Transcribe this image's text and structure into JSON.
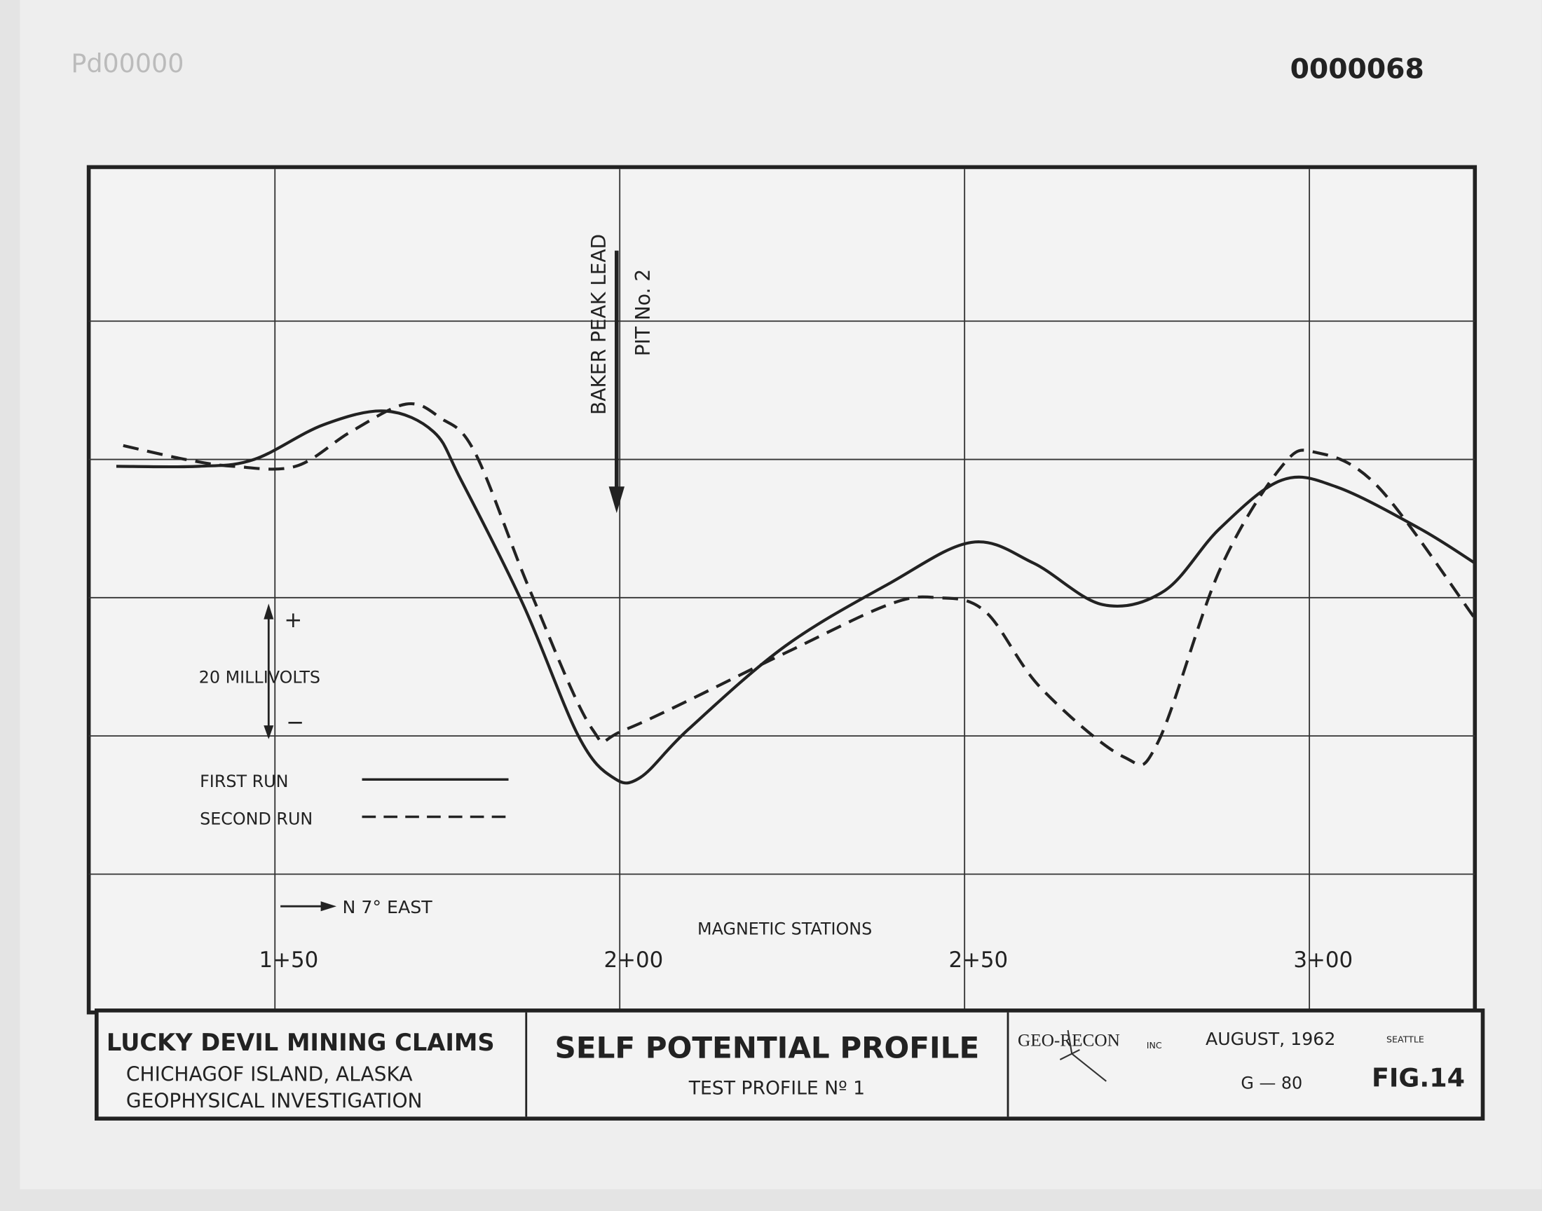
{
  "doc_numbers": {
    "left": "Pd00000",
    "right": "0000068"
  },
  "chart_data": {
    "type": "line",
    "title": "SELF POTENTIAL PROFILE",
    "subtitle": "TEST PROFILE Nº 1",
    "x_label": "MAGNETIC STATIONS",
    "xlim": [
      123,
      324
    ],
    "xticks": [
      {
        "value": 150,
        "label": "1+50"
      },
      {
        "value": 200,
        "label": "2+00"
      },
      {
        "value": 250,
        "label": "2+50"
      },
      {
        "value": 300,
        "label": "3+00"
      }
    ],
    "ylim": [
      -60,
      62
    ],
    "yticks": [
      -40,
      -20,
      0,
      20,
      40
    ],
    "grid": true,
    "series": [
      {
        "name": "FIRST RUN",
        "style": "solid",
        "color": "#222222",
        "x": [
          127,
          139,
          147,
          157,
          166,
          173,
          177,
          186,
          194,
          199,
          203,
          210,
          224,
          239,
          251,
          260,
          270,
          279,
          287,
          296,
          304,
          316,
          324
        ],
        "values": [
          19,
          19,
          20,
          25,
          27,
          24,
          17,
          -1,
          -20,
          -26,
          -26,
          -19,
          -7,
          2,
          8,
          5,
          -1,
          1,
          10,
          17,
          16,
          10,
          5
        ]
      },
      {
        "name": "SECOND RUN",
        "style": "dashed",
        "color": "#222222",
        "x": [
          128,
          137,
          144,
          153,
          161,
          169,
          174,
          179,
          187,
          196,
          201,
          224,
          239,
          246,
          253,
          261,
          273,
          278,
          287,
          296,
          301,
          310,
          324
        ],
        "values": [
          22,
          20,
          19,
          19,
          24,
          28,
          26,
          21,
          1,
          -19,
          -19,
          -8,
          -1,
          0,
          -2,
          -13,
          -23,
          -21,
          4,
          19,
          21,
          16,
          -3
        ]
      }
    ],
    "annotations": {
      "marker": "BAKER PEAK LEAD",
      "marker_sub": "PIT No. 2",
      "scale": "20 MILLIVOLTS",
      "plus": "+",
      "minus": "−",
      "direction": "N 7° EAST"
    }
  },
  "title_block": {
    "project": "LUCKY DEVIL MINING CLAIMS",
    "location": "CHICHAGOF ISLAND, ALASKA",
    "kind": "GEOPHYSICAL INVESTIGATION",
    "company": "GEO-RECON",
    "company_suffix": "INC",
    "date": "AUGUST, 1962",
    "city": "SEATTLE",
    "number": "G — 80",
    "figure": "FIG.14"
  }
}
